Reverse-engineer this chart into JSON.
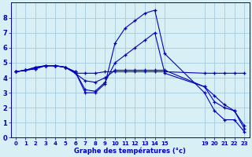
{
  "xlabel": "Graphe des températures (°c)",
  "bg_color": "#d8f0f5",
  "grid_color": "#aacfdf",
  "line_color": "#0000bb",
  "xlim": [
    -0.5,
    23.5
  ],
  "ylim": [
    0,
    9
  ],
  "xtick_positions": [
    0,
    1,
    2,
    3,
    4,
    5,
    6,
    7,
    8,
    9,
    10,
    11,
    12,
    13,
    14,
    15,
    19,
    20,
    21,
    22,
    23
  ],
  "xtick_labels": [
    "0",
    "1",
    "2",
    "3",
    "4",
    "5",
    "6",
    "7",
    "8",
    "9",
    "10",
    "11",
    "12",
    "13",
    "14",
    "15",
    "19",
    "20",
    "21",
    "22",
    "23"
  ],
  "yticks": [
    0,
    1,
    2,
    3,
    4,
    5,
    6,
    7,
    8
  ],
  "lines": [
    {
      "x": [
        0,
        1,
        2,
        3,
        4,
        5,
        6,
        7,
        8,
        9,
        10,
        11,
        12,
        13,
        14,
        15,
        19,
        20,
        21,
        22,
        23
      ],
      "y": [
        4.4,
        4.5,
        4.6,
        4.8,
        4.8,
        4.7,
        4.3,
        4.3,
        4.3,
        4.4,
        4.4,
        4.4,
        4.4,
        4.4,
        4.4,
        4.4,
        4.3,
        4.3,
        4.3,
        4.3,
        4.3
      ]
    },
    {
      "x": [
        0,
        1,
        2,
        3,
        4,
        5,
        6,
        7,
        8,
        9,
        10,
        11,
        12,
        13,
        14,
        15,
        19,
        20,
        21,
        22,
        23
      ],
      "y": [
        4.4,
        4.5,
        4.7,
        4.8,
        4.8,
        4.7,
        4.4,
        3.0,
        3.0,
        3.6,
        6.3,
        7.3,
        7.8,
        8.3,
        8.5,
        5.6,
        3.0,
        1.8,
        1.2,
        1.2,
        0.4
      ]
    },
    {
      "x": [
        0,
        1,
        2,
        3,
        4,
        5,
        6,
        7,
        8,
        9,
        10,
        11,
        12,
        13,
        14,
        15,
        19,
        20,
        21,
        22,
        23
      ],
      "y": [
        4.4,
        4.5,
        4.6,
        4.8,
        4.8,
        4.7,
        4.3,
        3.8,
        3.7,
        4.0,
        4.5,
        4.5,
        4.5,
        4.5,
        4.5,
        4.5,
        3.4,
        2.4,
        2.0,
        1.8,
        0.8
      ]
    },
    {
      "x": [
        0,
        1,
        2,
        3,
        4,
        5,
        6,
        7,
        8,
        9,
        10,
        11,
        12,
        13,
        14,
        15,
        19,
        20,
        21,
        22,
        23
      ],
      "y": [
        4.4,
        4.5,
        4.7,
        4.8,
        4.8,
        4.7,
        4.4,
        3.2,
        3.1,
        3.7,
        5.0,
        5.5,
        6.0,
        6.5,
        7.0,
        4.3,
        3.4,
        2.8,
        2.2,
        1.8,
        0.6
      ]
    }
  ]
}
